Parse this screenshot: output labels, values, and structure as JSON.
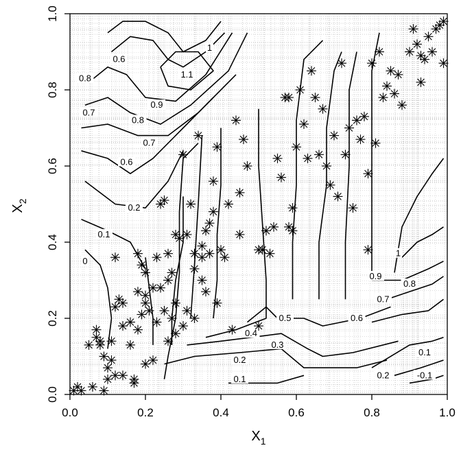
{
  "chart_data": {
    "type": "scatter",
    "xlabel": "X",
    "xlabel_sub": "1",
    "ylabel": "X",
    "ylabel_sub": "2",
    "xlim": [
      0,
      1
    ],
    "ylim": [
      0,
      1
    ],
    "x_ticks": [
      "0.0",
      "0.2",
      "0.4",
      "0.6",
      "0.8",
      "1.0"
    ],
    "y_ticks": [
      "0.0",
      "0.2",
      "0.4",
      "0.6",
      "0.8",
      "1.0"
    ],
    "grid": true,
    "marker": "asterisk",
    "contour_levels": [
      "-0.1",
      "0",
      "0.1",
      "0.2",
      "0.3",
      "0.4",
      "0.5",
      "0.6",
      "0.7",
      "0.8",
      "0.9",
      "1",
      "1.1"
    ],
    "contour_labels": [
      {
        "text": "0.6",
        "x": 0.13,
        "y": 0.88
      },
      {
        "text": "0.8",
        "x": 0.04,
        "y": 0.83
      },
      {
        "text": "0.7",
        "x": 0.05,
        "y": 0.74
      },
      {
        "text": "1",
        "x": 0.37,
        "y": 0.91
      },
      {
        "text": "1.1",
        "x": 0.31,
        "y": 0.84
      },
      {
        "text": "0.9",
        "x": 0.23,
        "y": 0.76
      },
      {
        "text": "0.8",
        "x": 0.18,
        "y": 0.72
      },
      {
        "text": "0.7",
        "x": 0.21,
        "y": 0.66
      },
      {
        "text": "0.6",
        "x": 0.15,
        "y": 0.61
      },
      {
        "text": "0.2",
        "x": 0.17,
        "y": 0.49
      },
      {
        "text": "0.1",
        "x": 0.09,
        "y": 0.42
      },
      {
        "text": "0",
        "x": 0.04,
        "y": 0.35
      },
      {
        "text": "0.5",
        "x": 0.57,
        "y": 0.2
      },
      {
        "text": "0.4",
        "x": 0.48,
        "y": 0.16
      },
      {
        "text": "0.3",
        "x": 0.55,
        "y": 0.13
      },
      {
        "text": "0.2",
        "x": 0.45,
        "y": 0.09
      },
      {
        "text": "0.1",
        "x": 0.45,
        "y": 0.04
      },
      {
        "text": "0.6",
        "x": 0.76,
        "y": 0.2
      },
      {
        "text": "0.7",
        "x": 0.83,
        "y": 0.25
      },
      {
        "text": "0.8",
        "x": 0.9,
        "y": 0.29
      },
      {
        "text": "0.9",
        "x": 0.81,
        "y": 0.31
      },
      {
        "text": "1",
        "x": 0.87,
        "y": 0.37
      },
      {
        "text": "0.1",
        "x": 0.94,
        "y": 0.11
      },
      {
        "text": "0.2",
        "x": 0.83,
        "y": 0.05
      },
      {
        "text": "-0.1",
        "x": 0.94,
        "y": 0.05
      }
    ],
    "contour_paths": [
      [
        [
          0.1,
          0.95
        ],
        [
          0.14,
          0.98
        ],
        [
          0.2,
          0.98
        ],
        [
          0.26,
          0.95
        ],
        [
          0.3,
          0.9
        ],
        [
          0.36,
          0.93
        ],
        [
          0.4,
          0.98
        ]
      ],
      [
        [
          0.11,
          0.9
        ],
        [
          0.16,
          0.94
        ],
        [
          0.22,
          0.93
        ],
        [
          0.26,
          0.88
        ],
        [
          0.3,
          0.86
        ],
        [
          0.36,
          0.9
        ],
        [
          0.41,
          0.95
        ]
      ],
      [
        [
          0.24,
          0.86
        ],
        [
          0.28,
          0.9
        ],
        [
          0.34,
          0.9
        ],
        [
          0.38,
          0.85
        ],
        [
          0.32,
          0.8
        ],
        [
          0.26,
          0.81
        ],
        [
          0.24,
          0.86
        ]
      ],
      [
        [
          0.05,
          0.82
        ],
        [
          0.1,
          0.86
        ],
        [
          0.15,
          0.84
        ],
        [
          0.2,
          0.78
        ],
        [
          0.28,
          0.77
        ],
        [
          0.36,
          0.84
        ],
        [
          0.43,
          0.95
        ]
      ],
      [
        [
          0.04,
          0.76
        ],
        [
          0.1,
          0.78
        ],
        [
          0.16,
          0.74
        ],
        [
          0.24,
          0.71
        ],
        [
          0.32,
          0.76
        ],
        [
          0.42,
          0.85
        ],
        [
          0.47,
          0.95
        ]
      ],
      [
        [
          0.03,
          0.7
        ],
        [
          0.1,
          0.71
        ],
        [
          0.18,
          0.68
        ],
        [
          0.26,
          0.68
        ],
        [
          0.34,
          0.74
        ],
        [
          0.44,
          0.84
        ]
      ],
      [
        [
          0.03,
          0.64
        ],
        [
          0.1,
          0.62
        ],
        [
          0.16,
          0.58
        ],
        [
          0.22,
          0.62
        ],
        [
          0.3,
          0.7
        ],
        [
          0.38,
          0.78
        ]
      ],
      [
        [
          0.04,
          0.56
        ],
        [
          0.12,
          0.5
        ],
        [
          0.2,
          0.49
        ],
        [
          0.26,
          0.56
        ],
        [
          0.3,
          0.64
        ]
      ],
      [
        [
          0.03,
          0.46
        ],
        [
          0.1,
          0.43
        ],
        [
          0.16,
          0.4
        ],
        [
          0.2,
          0.33
        ]
      ],
      [
        [
          0.04,
          0.38
        ],
        [
          0.08,
          0.34
        ],
        [
          0.1,
          0.28
        ],
        [
          0.11,
          0.2
        ],
        [
          0.1,
          0.12
        ]
      ],
      [
        [
          0.2,
          0.36
        ],
        [
          0.21,
          0.28
        ],
        [
          0.22,
          0.2
        ],
        [
          0.22,
          0.13
        ]
      ],
      [
        [
          0.25,
          0.04
        ],
        [
          0.26,
          0.1
        ],
        [
          0.28,
          0.2
        ],
        [
          0.29,
          0.32
        ],
        [
          0.29,
          0.48
        ],
        [
          0.3,
          0.62
        ],
        [
          0.34,
          0.66
        ]
      ],
      [
        [
          0.27,
          0.13
        ],
        [
          0.27,
          0.2
        ],
        [
          0.28,
          0.3
        ],
        [
          0.3,
          0.4
        ],
        [
          0.3,
          0.52
        ]
      ],
      [
        [
          0.38,
          0.2
        ],
        [
          0.39,
          0.3
        ],
        [
          0.39,
          0.42
        ],
        [
          0.4,
          0.55
        ],
        [
          0.4,
          0.7
        ]
      ],
      [
        [
          0.32,
          0.2
        ],
        [
          0.33,
          0.34
        ],
        [
          0.34,
          0.5
        ],
        [
          0.35,
          0.68
        ]
      ],
      [
        [
          0.36,
          0.15
        ],
        [
          0.44,
          0.17
        ],
        [
          0.52,
          0.2
        ],
        [
          0.52,
          0.3
        ],
        [
          0.51,
          0.45
        ],
        [
          0.5,
          0.6
        ],
        [
          0.5,
          0.75
        ]
      ],
      [
        [
          0.47,
          0.19
        ],
        [
          0.52,
          0.23
        ],
        [
          0.55,
          0.2
        ],
        [
          0.62,
          0.2
        ],
        [
          0.67,
          0.18
        ],
        [
          0.77,
          0.2
        ],
        [
          0.85,
          0.23
        ]
      ],
      [
        [
          0.31,
          0.13
        ],
        [
          0.4,
          0.14
        ],
        [
          0.48,
          0.15
        ],
        [
          0.56,
          0.16
        ],
        [
          0.63,
          0.12
        ],
        [
          0.67,
          0.1
        ],
        [
          0.75,
          0.11
        ],
        [
          0.87,
          0.14
        ]
      ],
      [
        [
          0.25,
          0.08
        ],
        [
          0.33,
          0.1
        ],
        [
          0.45,
          0.11
        ],
        [
          0.56,
          0.12
        ],
        [
          0.62,
          0.07
        ],
        [
          0.68,
          0.07
        ],
        [
          0.76,
          0.07
        ],
        [
          0.84,
          0.09
        ]
      ],
      [
        [
          0.42,
          0.03
        ],
        [
          0.5,
          0.03
        ],
        [
          0.55,
          0.03
        ],
        [
          0.62,
          0.05
        ]
      ],
      [
        [
          0.59,
          0.25
        ],
        [
          0.59,
          0.4
        ],
        [
          0.6,
          0.55
        ],
        [
          0.6,
          0.72
        ],
        [
          0.62,
          0.88
        ],
        [
          0.67,
          0.93
        ]
      ],
      [
        [
          0.66,
          0.25
        ],
        [
          0.66,
          0.4
        ],
        [
          0.68,
          0.55
        ],
        [
          0.68,
          0.7
        ],
        [
          0.7,
          0.85
        ],
        [
          0.72,
          0.9
        ]
      ],
      [
        [
          0.73,
          0.25
        ],
        [
          0.73,
          0.4
        ],
        [
          0.74,
          0.6
        ],
        [
          0.74,
          0.8
        ],
        [
          0.76,
          0.9
        ]
      ],
      [
        [
          0.8,
          0.3
        ],
        [
          0.8,
          0.45
        ],
        [
          0.8,
          0.6
        ],
        [
          0.8,
          0.85
        ],
        [
          0.82,
          0.95
        ]
      ],
      [
        [
          0.86,
          0.32
        ],
        [
          0.88,
          0.44
        ],
        [
          0.92,
          0.52
        ],
        [
          0.96,
          0.58
        ],
        [
          0.99,
          0.62
        ]
      ],
      [
        [
          0.88,
          0.36
        ],
        [
          0.92,
          0.4
        ],
        [
          0.96,
          0.42
        ],
        [
          0.99,
          0.44
        ]
      ],
      [
        [
          0.8,
          0.3
        ],
        [
          0.88,
          0.3
        ],
        [
          0.95,
          0.33
        ],
        [
          0.99,
          0.35
        ]
      ],
      [
        [
          0.84,
          0.25
        ],
        [
          0.9,
          0.27
        ],
        [
          0.96,
          0.29
        ],
        [
          0.99,
          0.31
        ]
      ],
      [
        [
          0.8,
          0.19
        ],
        [
          0.88,
          0.21
        ],
        [
          0.95,
          0.22
        ],
        [
          0.99,
          0.25
        ]
      ],
      [
        [
          0.8,
          0.07
        ],
        [
          0.9,
          0.13
        ],
        [
          0.96,
          0.14
        ],
        [
          0.99,
          0.15
        ]
      ],
      [
        [
          0.86,
          0.05
        ],
        [
          0.93,
          0.07
        ],
        [
          0.99,
          0.09
        ]
      ],
      [
        [
          0.9,
          0.03
        ],
        [
          0.96,
          0.04
        ],
        [
          0.99,
          0.05
        ]
      ]
    ],
    "points": [
      [
        0.01,
        0.01
      ],
      [
        0.02,
        0.02
      ],
      [
        0.03,
        0.01
      ],
      [
        0.05,
        0.13
      ],
      [
        0.06,
        0.02
      ],
      [
        0.07,
        0.17
      ],
      [
        0.07,
        0.15
      ],
      [
        0.08,
        0.13
      ],
      [
        0.09,
        0.01
      ],
      [
        0.09,
        0.1
      ],
      [
        0.1,
        0.04
      ],
      [
        0.1,
        0.07
      ],
      [
        0.11,
        0.14
      ],
      [
        0.12,
        0.05
      ],
      [
        0.12,
        0.23
      ],
      [
        0.12,
        0.36
      ],
      [
        0.13,
        0.25
      ],
      [
        0.14,
        0.24
      ],
      [
        0.14,
        0.18
      ],
      [
        0.16,
        0.19
      ],
      [
        0.17,
        0.03
      ],
      [
        0.18,
        0.27
      ],
      [
        0.18,
        0.37
      ],
      [
        0.19,
        0.34
      ],
      [
        0.19,
        0.21
      ],
      [
        0.2,
        0.24
      ],
      [
        0.2,
        0.26
      ],
      [
        0.2,
        0.32
      ],
      [
        0.2,
        0.08
      ],
      [
        0.21,
        0.22
      ],
      [
        0.22,
        0.09
      ],
      [
        0.22,
        0.28
      ],
      [
        0.23,
        0.19
      ],
      [
        0.23,
        0.36
      ],
      [
        0.24,
        0.5
      ],
      [
        0.24,
        0.28
      ],
      [
        0.25,
        0.51
      ],
      [
        0.25,
        0.22
      ],
      [
        0.26,
        0.37
      ],
      [
        0.26,
        0.14
      ],
      [
        0.27,
        0.32
      ],
      [
        0.28,
        0.24
      ],
      [
        0.28,
        0.42
      ],
      [
        0.29,
        0.41
      ],
      [
        0.3,
        0.63
      ],
      [
        0.31,
        0.42
      ],
      [
        0.32,
        0.5
      ],
      [
        0.33,
        0.37
      ],
      [
        0.33,
        0.33
      ],
      [
        0.34,
        0.68
      ],
      [
        0.35,
        0.39
      ],
      [
        0.35,
        0.36
      ],
      [
        0.36,
        0.43
      ],
      [
        0.37,
        0.37
      ],
      [
        0.38,
        0.56
      ],
      [
        0.38,
        0.48
      ],
      [
        0.39,
        0.24
      ],
      [
        0.39,
        0.65
      ],
      [
        0.4,
        0.38
      ],
      [
        0.41,
        0.36
      ],
      [
        0.42,
        0.5
      ],
      [
        0.43,
        0.17
      ],
      [
        0.44,
        0.72
      ],
      [
        0.45,
        0.42
      ],
      [
        0.45,
        0.53
      ],
      [
        0.46,
        0.67
      ],
      [
        0.47,
        0.6
      ],
      [
        0.5,
        0.18
      ],
      [
        0.51,
        0.38
      ],
      [
        0.52,
        0.43
      ],
      [
        0.53,
        0.37
      ],
      [
        0.54,
        0.44
      ],
      [
        0.55,
        0.62
      ],
      [
        0.56,
        0.57
      ],
      [
        0.57,
        0.78
      ],
      [
        0.58,
        0.44
      ],
      [
        0.59,
        0.43
      ],
      [
        0.6,
        0.65
      ],
      [
        0.61,
        0.8
      ],
      [
        0.62,
        0.71
      ],
      [
        0.63,
        0.62
      ],
      [
        0.64,
        0.85
      ],
      [
        0.65,
        0.78
      ],
      [
        0.66,
        0.63
      ],
      [
        0.67,
        0.75
      ],
      [
        0.68,
        0.6
      ],
      [
        0.69,
        0.55
      ],
      [
        0.7,
        0.68
      ],
      [
        0.71,
        0.52
      ],
      [
        0.72,
        0.87
      ],
      [
        0.73,
        0.63
      ],
      [
        0.74,
        0.7
      ],
      [
        0.75,
        0.49
      ],
      [
        0.76,
        0.72
      ],
      [
        0.77,
        0.67
      ],
      [
        0.78,
        0.73
      ],
      [
        0.79,
        0.58
      ],
      [
        0.8,
        0.87
      ],
      [
        0.81,
        0.66
      ],
      [
        0.82,
        0.9
      ],
      [
        0.83,
        0.78
      ],
      [
        0.84,
        0.81
      ],
      [
        0.85,
        0.85
      ],
      [
        0.86,
        0.79
      ],
      [
        0.87,
        0.84
      ],
      [
        0.88,
        0.76
      ],
      [
        0.9,
        0.9
      ],
      [
        0.91,
        0.96
      ],
      [
        0.92,
        0.92
      ],
      [
        0.93,
        0.89
      ],
      [
        0.94,
        0.88
      ],
      [
        0.95,
        0.94
      ],
      [
        0.96,
        0.9
      ],
      [
        0.97,
        0.96
      ],
      [
        0.98,
        0.97
      ],
      [
        0.99,
        0.98
      ],
      [
        0.99,
        0.87
      ],
      [
        0.93,
        0.82
      ],
      [
        0.79,
        0.38
      ],
      [
        0.59,
        0.49
      ],
      [
        0.58,
        0.78
      ],
      [
        0.5,
        0.38
      ],
      [
        0.37,
        0.45
      ],
      [
        0.33,
        0.2
      ],
      [
        0.3,
        0.18
      ],
      [
        0.27,
        0.2
      ],
      [
        0.26,
        0.3
      ],
      [
        0.31,
        0.22
      ],
      [
        0.35,
        0.3
      ],
      [
        0.36,
        0.27
      ],
      [
        0.28,
        0.16
      ],
      [
        0.16,
        0.13
      ],
      [
        0.18,
        0.17
      ],
      [
        0.17,
        0.04
      ],
      [
        0.14,
        0.05
      ],
      [
        0.11,
        0.09
      ],
      [
        0.08,
        0.14
      ]
    ]
  }
}
